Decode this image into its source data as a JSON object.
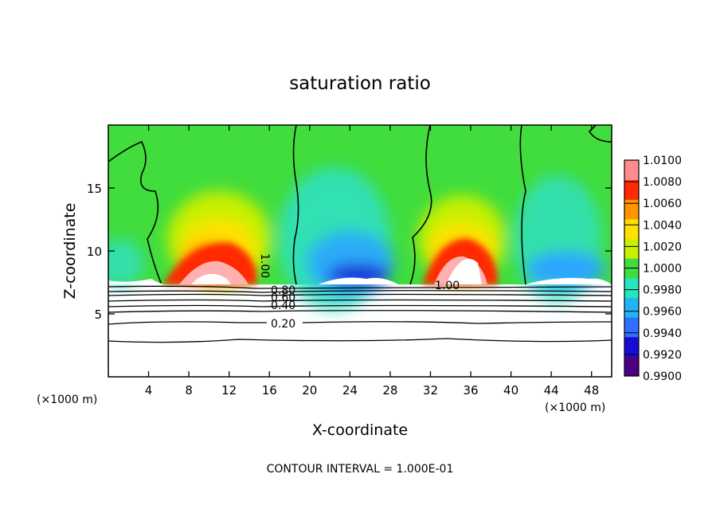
{
  "chart_data": {
    "type": "contour",
    "title": "saturation ratio",
    "xlabel": "X-coordinate",
    "ylabel": "Z-coordinate",
    "x_unit_left": "(×1000 m)",
    "x_unit_right": "(×1000 m)",
    "xlim": [
      0,
      50
    ],
    "ylim": [
      0,
      20
    ],
    "x_ticks": [
      4,
      8,
      12,
      16,
      20,
      24,
      28,
      32,
      36,
      40,
      44,
      48
    ],
    "y_ticks": [
      5,
      10,
      15
    ],
    "colorbar": {
      "levels": [
        "1.0100",
        "1.0080",
        "1.0060",
        "1.0040",
        "1.0020",
        "1.0000",
        "0.9980",
        "0.9960",
        "0.9940",
        "0.9920",
        "0.9900"
      ],
      "vmin": 0.99,
      "vmax": 1.01,
      "colors": [
        "#4b0082",
        "#1a0ad6",
        "#2f6fff",
        "#22b4f5",
        "#26e6c0",
        "#3fdd3f",
        "#c8f000",
        "#ffe100",
        "#ff9600",
        "#ff2a00",
        "#ff8c8c"
      ]
    },
    "contour_labels": [
      "1.00",
      "1.00",
      "0.80",
      "0.60",
      "0.40",
      "0.20"
    ],
    "footer": "CONTOUR INTERVAL = 1.000E-01"
  }
}
